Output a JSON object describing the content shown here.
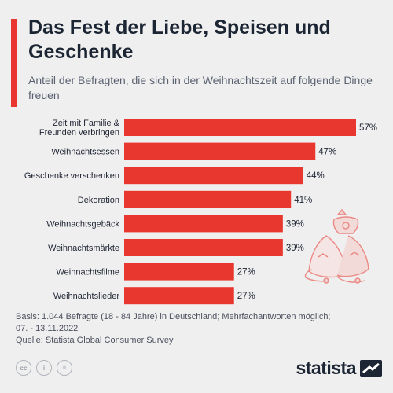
{
  "header": {
    "title": "Das Fest der Liebe, Speisen und Geschenke",
    "subtitle": "Anteil der Befragten, die sich in der Weihnachtszeit auf folgende Dinge freuen"
  },
  "chart_data": {
    "type": "bar",
    "orientation": "horizontal",
    "title": "Das Fest der Liebe, Speisen und Geschenke",
    "subtitle": "Anteil der Befragten, die sich in der Weihnachtszeit auf folgende Dinge freuen",
    "categories": [
      [
        "Zeit mit Familie &",
        "Freunden verbringen"
      ],
      [
        "Weihnachtsessen"
      ],
      [
        "Geschenke verschenken"
      ],
      [
        "Dekoration"
      ],
      [
        "Weihnachtsgebäck"
      ],
      [
        "Weihnachtsmärkte"
      ],
      [
        "Weihnachtsfilme"
      ],
      [
        "Weihnachtslieder"
      ]
    ],
    "values": [
      57,
      47,
      44,
      41,
      39,
      39,
      27,
      27
    ],
    "value_suffix": "%",
    "bar_color": "#e8372e",
    "xlim": [
      0,
      57
    ]
  },
  "footer": {
    "basis_line1": "Basis: 1.044 Befragte (18 - 84 Jahre) in Deutschland; Mehrfachantworten möglich;",
    "basis_line2": "07. - 13.11.2022",
    "source": "Quelle: Statista Global Consumer Survey"
  },
  "license_icons": [
    "cc",
    "i",
    "="
  ],
  "brand": {
    "name": "statista"
  },
  "colors": {
    "accent": "#e8372e",
    "text": "#1c2533",
    "background": "#efefef"
  }
}
